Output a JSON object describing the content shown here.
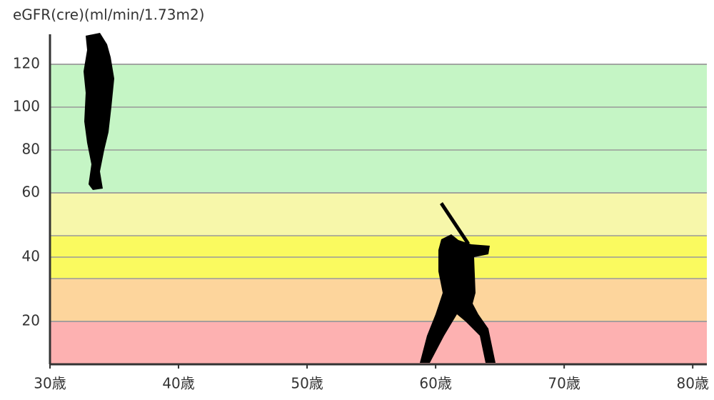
{
  "chart_data": {
    "type": "band",
    "y_label": "eGFR(cre)(ml/min/1.73m2)",
    "bands": [
      "#c5f5c5",
      "#f7f7aa",
      "#fafa5f",
      "#fdd59c",
      "#fdb1b1"
    ],
    "band_line_color": "#999999",
    "xlim": [
      30,
      81.1
    ],
    "xticks": [
      {
        "value": 30,
        "label": "30歳"
      },
      {
        "value": 40,
        "label": "40歳"
      },
      {
        "value": 50,
        "label": "50歳"
      },
      {
        "value": 60,
        "label": "60歳"
      },
      {
        "value": 70,
        "label": "70歳"
      },
      {
        "value": 80,
        "label": "80歳"
      }
    ],
    "ylim": [
      6.7,
      134
    ],
    "yticks": [
      20,
      40,
      60,
      80,
      100,
      120
    ],
    "grid": true
  }
}
